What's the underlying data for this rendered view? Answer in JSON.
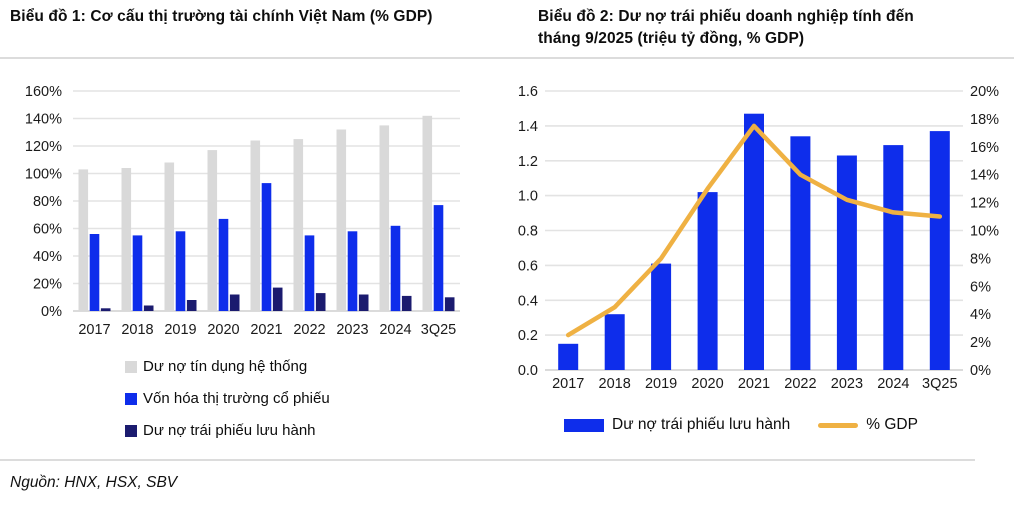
{
  "source_note": "Nguồn: HNX, HSX, SBV",
  "colors": {
    "bar_gray": "#D9D9D9",
    "bar_blue": "#0E2DEB",
    "bar_navy": "#1B1B6F",
    "line_orange": "#EFB143",
    "gridline": "#E3E3E3",
    "baseline": "#CFCFCF",
    "axis_text": "#1A1A1A",
    "title_text": "#0D0D0D"
  },
  "chart_data": [
    {
      "type": "bar",
      "title": "Biểu đồ 1: Cơ cấu thị trường tài chính Việt Nam (% GDP)",
      "categories": [
        "2017",
        "2018",
        "2019",
        "2020",
        "2021",
        "2022",
        "2023",
        "2024",
        "3Q25"
      ],
      "series": [
        {
          "name": "Dư nợ tín dụng hệ thống",
          "color": "#D9D9D9",
          "values": [
            103,
            104,
            108,
            117,
            124,
            125,
            132,
            135,
            142
          ]
        },
        {
          "name": "Vốn hóa thị trường cổ phiếu",
          "color": "#0E2DEB",
          "values": [
            56,
            55,
            58,
            67,
            93,
            55,
            58,
            62,
            77
          ]
        },
        {
          "name": "Dư nợ trái phiếu lưu hành",
          "color": "#1B1B6F",
          "values": [
            2,
            4,
            8,
            12,
            17,
            13,
            12,
            11,
            10
          ]
        }
      ],
      "xlabel": "",
      "ylabel": "",
      "ylim": [
        0,
        160
      ],
      "ytick_step": 20,
      "ytick_suffix": "%",
      "grid": true,
      "legend_position": "bottom-left"
    },
    {
      "type": "bar+line",
      "title": "Biểu đồ 2: Dư nợ trái phiếu doanh nghiệp tính đến tháng 9/2025 (triệu tỷ đồng, % GDP)",
      "categories": [
        "2017",
        "2018",
        "2019",
        "2020",
        "2021",
        "2022",
        "2023",
        "2024",
        "3Q25"
      ],
      "bar_series": {
        "name": "Dư nợ trái phiếu lưu hành",
        "axis": "left",
        "color": "#0E2DEB",
        "values": [
          0.15,
          0.32,
          0.61,
          1.02,
          1.47,
          1.34,
          1.23,
          1.29,
          1.37
        ]
      },
      "line_series": {
        "name": "% GDP",
        "axis": "right",
        "color": "#EFB143",
        "values": [
          2.5,
          4.5,
          8,
          13,
          17.5,
          14,
          12.2,
          11.3,
          11
        ]
      },
      "left_ylim": [
        0,
        1.6
      ],
      "left_tick_step": 0.2,
      "right_ylim": [
        0,
        20
      ],
      "right_tick_step": 2,
      "right_tick_suffix": "%",
      "grid": true,
      "legend_position": "bottom-center"
    }
  ]
}
